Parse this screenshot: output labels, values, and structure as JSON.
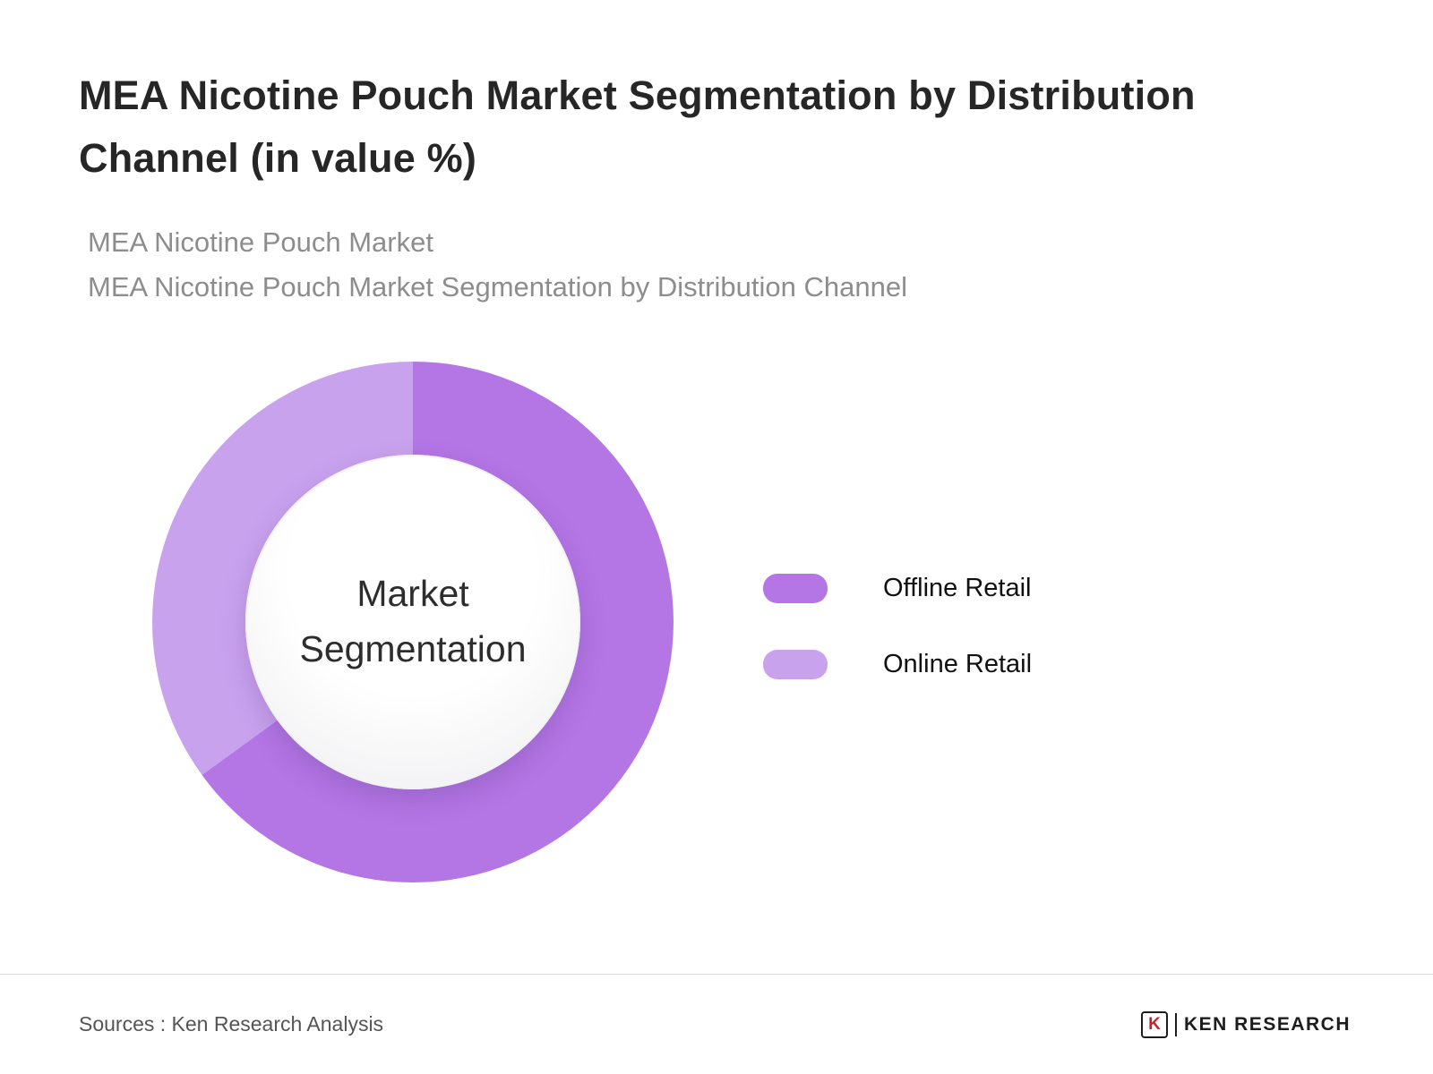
{
  "header": {
    "title": "MEA Nicotine Pouch Market Segmentation by Distribution Channel (in value %)",
    "subtitle1": "MEA Nicotine Pouch Market",
    "subtitle2": "MEA Nicotine Pouch Market Segmentation by Distribution Channel"
  },
  "chart_data": {
    "type": "pie",
    "subtype": "donut",
    "title": "MEA Nicotine Pouch Market Segmentation by Distribution Channel (in value %)",
    "center_label": "Market Segmentation",
    "start_angle_deg": 0,
    "direction": "clockwise",
    "legend_position": "right",
    "series": [
      {
        "name": "Offline Retail",
        "value": 65,
        "color": "#b475e5"
      },
      {
        "name": "Online Retail",
        "value": 35,
        "color": "#c9a2ee"
      }
    ]
  },
  "footer": {
    "sources": "Sources : Ken Research Analysis",
    "logo_icon_letter": "K",
    "logo_text": "KEN RESEARCH"
  }
}
